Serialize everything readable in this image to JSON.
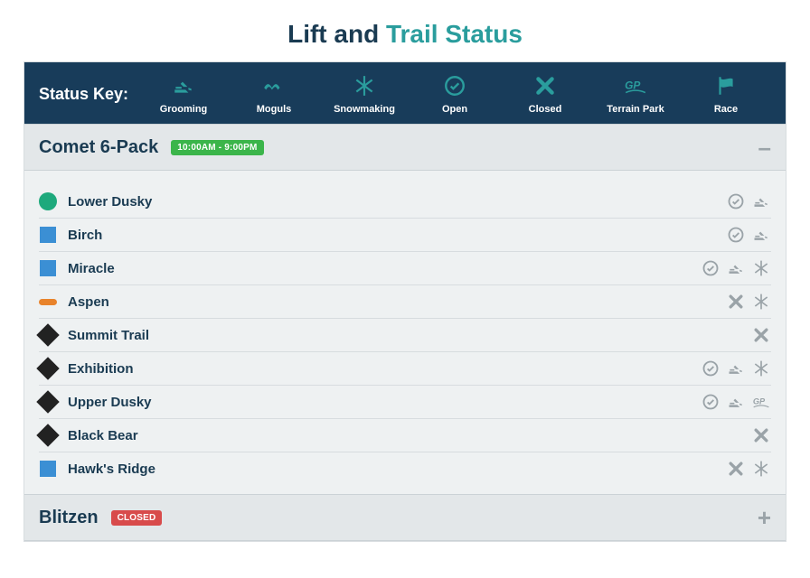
{
  "title": {
    "prefix": "Lift and ",
    "accent": "Trail Status"
  },
  "colors": {
    "header_bg": "#183c5a",
    "accent": "#2a9d9d",
    "text_dark": "#1a3b52",
    "muted": "#9aa3a8",
    "panel_bg": "#eef1f2",
    "lift_bg": "#e3e7e9",
    "badge_open": "#3bb54a",
    "badge_closed": "#d84b4b",
    "diff_green": "#1ea97c",
    "diff_blue": "#3b8fd4",
    "diff_black": "#222222",
    "diff_orange": "#e8832b"
  },
  "status_key": {
    "label": "Status Key:",
    "items": [
      {
        "label": "Grooming",
        "icon": "grooming"
      },
      {
        "label": "Moguls",
        "icon": "moguls"
      },
      {
        "label": "Snowmaking",
        "icon": "snowmaking"
      },
      {
        "label": "Open",
        "icon": "open"
      },
      {
        "label": "Closed",
        "icon": "closed"
      },
      {
        "label": "Terrain Park",
        "icon": "terrainpark"
      },
      {
        "label": "Race",
        "icon": "race"
      }
    ]
  },
  "lifts": [
    {
      "name": "Comet 6-Pack",
      "badge_text": "10:00AM - 9:00PM",
      "badge_color": "#3bb54a",
      "expanded": true,
      "toggle_glyph": "–",
      "trails": [
        {
          "name": "Lower Dusky",
          "difficulty": "green",
          "statuses": [
            "open",
            "grooming"
          ]
        },
        {
          "name": "Birch",
          "difficulty": "blue",
          "statuses": [
            "open",
            "grooming"
          ]
        },
        {
          "name": "Miracle",
          "difficulty": "blue",
          "statuses": [
            "open",
            "grooming",
            "snowmaking"
          ]
        },
        {
          "name": "Aspen",
          "difficulty": "orange",
          "statuses": [
            "closed",
            "snowmaking"
          ]
        },
        {
          "name": "Summit Trail",
          "difficulty": "black",
          "statuses": [
            "closed"
          ]
        },
        {
          "name": "Exhibition",
          "difficulty": "black",
          "statuses": [
            "open",
            "grooming",
            "snowmaking"
          ]
        },
        {
          "name": "Upper Dusky",
          "difficulty": "black",
          "statuses": [
            "open",
            "grooming",
            "terrainpark"
          ]
        },
        {
          "name": "Black Bear",
          "difficulty": "black",
          "statuses": [
            "closed"
          ]
        },
        {
          "name": "Hawk's Ridge",
          "difficulty": "blue",
          "statuses": [
            "closed",
            "snowmaking"
          ]
        }
      ]
    },
    {
      "name": "Blitzen",
      "badge_text": "CLOSED",
      "badge_color": "#d84b4b",
      "expanded": false,
      "toggle_glyph": "+",
      "trails": []
    }
  ]
}
